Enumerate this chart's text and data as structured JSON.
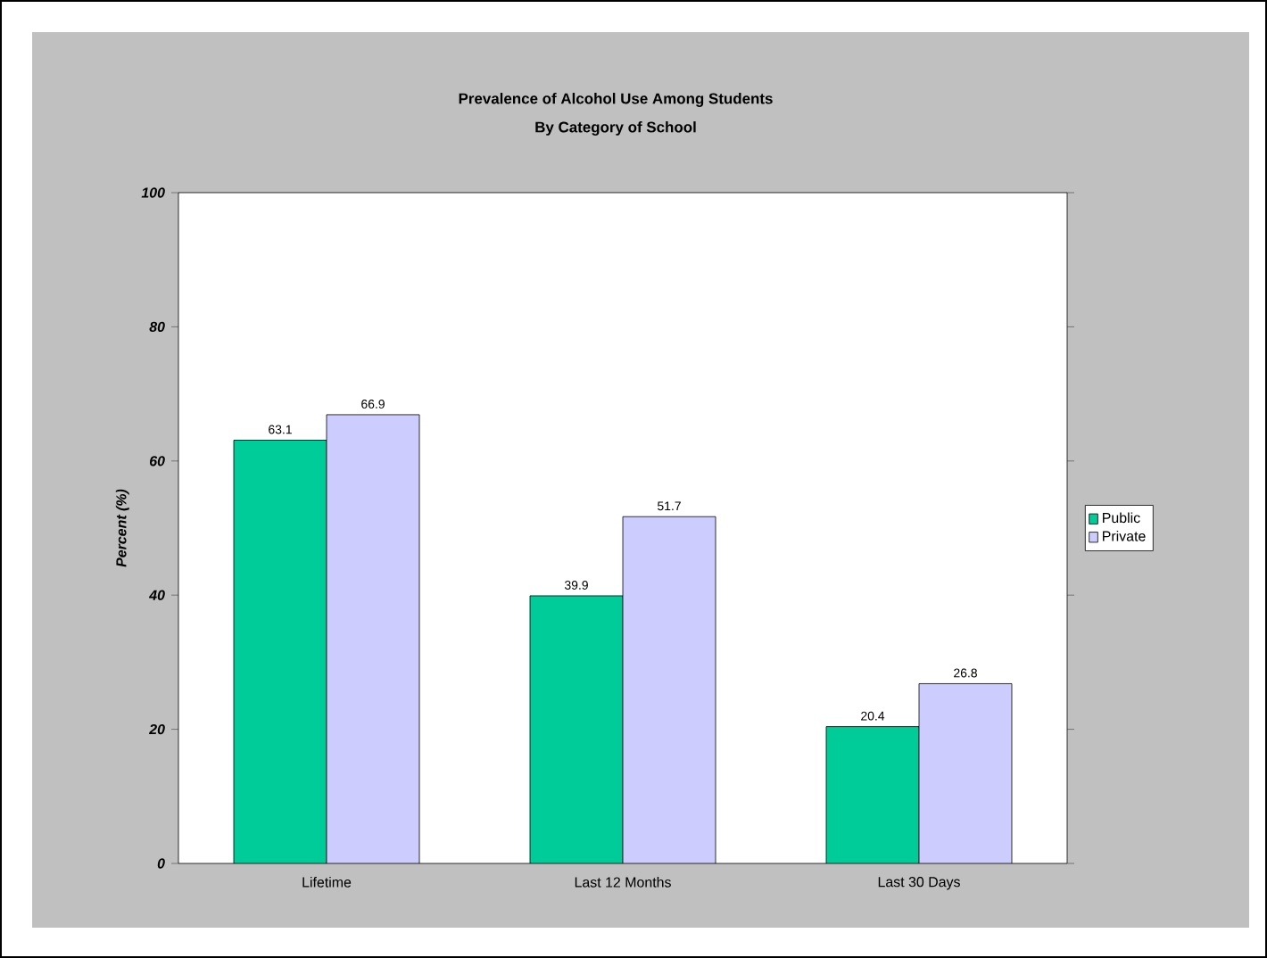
{
  "chart_data": {
    "type": "bar",
    "title": "Prevalence of Alcohol Use Among Students",
    "subtitle": "By Category of School",
    "ylabel": "Percent (%)",
    "categories": [
      "Lifetime",
      "Last 12 Months",
      "Last 30 Days"
    ],
    "series": [
      {
        "name": "Public",
        "color": "#00cc99",
        "values": [
          63.1,
          39.9,
          20.4
        ]
      },
      {
        "name": "Private",
        "color": "#ccccff",
        "values": [
          66.9,
          51.7,
          26.8
        ]
      }
    ],
    "ylim": [
      0,
      100
    ],
    "yticks": [
      0,
      20,
      40,
      60,
      80,
      100
    ],
    "data_labels": true,
    "grid": false,
    "legend": "right"
  }
}
